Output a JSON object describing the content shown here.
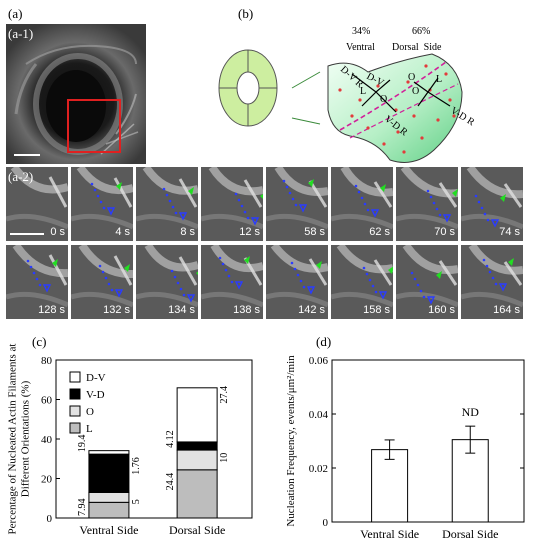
{
  "labels": {
    "a": "(a)",
    "a1": "(a-1)",
    "a2": "(a-2)",
    "b": "(b)",
    "c": "(c)",
    "d": "(d)"
  },
  "schematic": {
    "ventral_percent": "34%",
    "dorsal_percent": "66%",
    "ventral": "Ventral",
    "dorsal_side": "Dorsal  Side",
    "orient_labels": [
      "D-V R",
      "D-V",
      "L",
      "O",
      "V-D R",
      "O",
      "O",
      "L",
      "V-D R"
    ]
  },
  "frames_row1": [
    "0 s",
    "4 s",
    "8 s",
    "12 s",
    "58 s",
    "62 s",
    "70 s",
    "74 s"
  ],
  "frames_row2": [
    "128 s",
    "132 s",
    "134 s",
    "138 s",
    "142 s",
    "158 s",
    "160 s",
    "164 s"
  ],
  "colors": {
    "red_box": "#e02020",
    "green_arrow": "#22dd22",
    "blue_dot": "#2a3cff",
    "cell_green": "#cdeea0"
  },
  "chart_data": [
    {
      "type": "bar",
      "stacked": true,
      "ylabel": "Percentage of Nucleated Actin Filaments at Different Orientations (%)",
      "categories": [
        "Ventral Side",
        "Dorsal Side"
      ],
      "ylim": [
        0,
        80
      ],
      "yticks": [
        0,
        20,
        40,
        60,
        80
      ],
      "legend": [
        "D-V",
        "V-D",
        "O",
        "L"
      ],
      "legend_placement": "top-left",
      "series": [
        {
          "name": "L",
          "values": [
            7.94,
            24.4
          ],
          "color": "#bdbdbd"
        },
        {
          "name": "O",
          "values": [
            5,
            10
          ],
          "color": "#e2e2e2"
        },
        {
          "name": "V-D",
          "values": [
            19.4,
            4.12
          ],
          "color": "#000000"
        },
        {
          "name": "D-V",
          "values": [
            1.76,
            27.4
          ],
          "color": "#ffffff"
        }
      ],
      "data_labels": {
        "ventral_left": [
          "19.4",
          "7.94"
        ],
        "ventral_right": [
          "1.76",
          "5"
        ],
        "dorsal_left": [
          "24.4",
          "4.12"
        ],
        "dorsal_right": [
          "27.4",
          "10"
        ]
      }
    },
    {
      "type": "bar",
      "ylabel": "Nucleation Frequency, events/μm²/min",
      "categories": [
        "Ventral Side",
        "Dorsal Side"
      ],
      "values": [
        0.0268,
        0.0305
      ],
      "errors": [
        0.0036,
        0.005
      ],
      "ylim": [
        0,
        0.06
      ],
      "yticks": [
        "0",
        "0.02",
        "0.04",
        "0.06"
      ],
      "annotation": "ND"
    }
  ]
}
